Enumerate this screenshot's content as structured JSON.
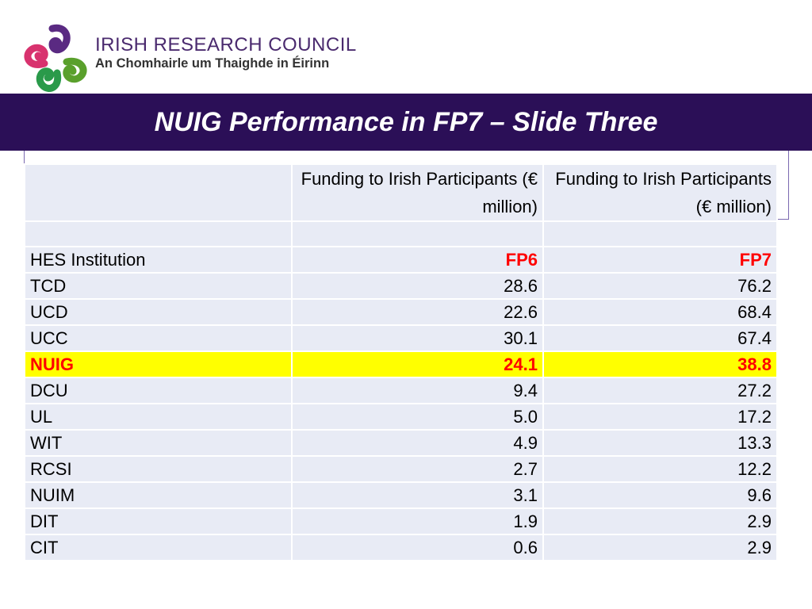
{
  "header": {
    "org_name": "IRISH RESEARCH COUNCIL",
    "org_subtitle": "An Chomhairle um Thaighde in Éirinn",
    "logo_icon": "irish-research-council-logo-icon"
  },
  "title": "NUIG Performance in FP7 – Slide Three",
  "colors": {
    "title_bar": "#2b0f57",
    "table_cell": "#e8ebf5",
    "highlight_row": "#ffff00",
    "highlight_text": "#ff0000"
  },
  "table": {
    "col_headers": [
      "",
      "Funding to Irish Participants (€ million)",
      "Funding to Irish Participants (€ million)"
    ],
    "label_row": [
      "HES Institution",
      "FP6",
      "FP7"
    ],
    "rows": [
      [
        "TCD",
        "28.6",
        "76.2"
      ],
      [
        "UCD",
        "22.6",
        "68.4"
      ],
      [
        "UCC",
        "30.1",
        "67.4"
      ],
      [
        "NUIG",
        "24.1",
        "38.8"
      ],
      [
        "DCU",
        "9.4",
        "27.2"
      ],
      [
        "UL",
        "5.0",
        "17.2"
      ],
      [
        "WIT",
        "4.9",
        "13.3"
      ],
      [
        "RCSI",
        "2.7",
        "12.2"
      ],
      [
        "NUIM",
        "3.1",
        "9.6"
      ],
      [
        "DIT",
        "1.9",
        "2.9"
      ],
      [
        "CIT",
        "0.6",
        "2.9"
      ]
    ],
    "highlighted_institution": "NUIG"
  }
}
